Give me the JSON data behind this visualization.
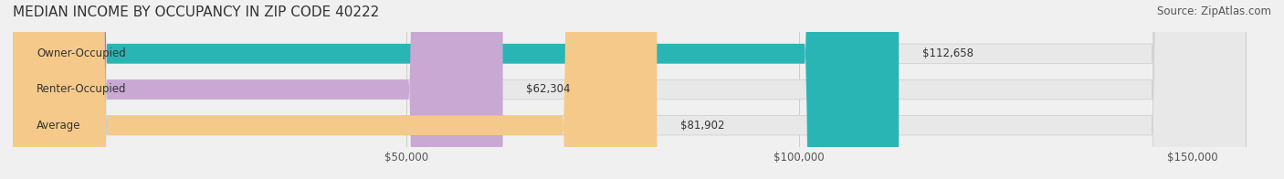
{
  "title": "MEDIAN INCOME BY OCCUPANCY IN ZIP CODE 40222",
  "source": "Source: ZipAtlas.com",
  "categories": [
    "Owner-Occupied",
    "Renter-Occupied",
    "Average"
  ],
  "values": [
    112658,
    62304,
    81902
  ],
  "labels": [
    "$112,658",
    "$62,304",
    "$81,902"
  ],
  "bar_colors": [
    "#2ab5b5",
    "#c9a8d4",
    "#f5c98a"
  ],
  "bar_edge_colors": [
    "#2ab5b5",
    "#c9a8d4",
    "#f5c98a"
  ],
  "background_color": "#f0f0f0",
  "bar_bg_color": "#e8e8e8",
  "xlim": [
    0,
    160000
  ],
  "xticks": [
    0,
    50000,
    100000,
    150000
  ],
  "xticklabels": [
    "",
    "$50,000",
    "$100,000",
    "$150,000"
  ],
  "title_fontsize": 11,
  "label_fontsize": 8.5,
  "tick_fontsize": 8.5,
  "source_fontsize": 8.5,
  "bar_height": 0.55,
  "figsize": [
    14.06,
    1.96
  ]
}
